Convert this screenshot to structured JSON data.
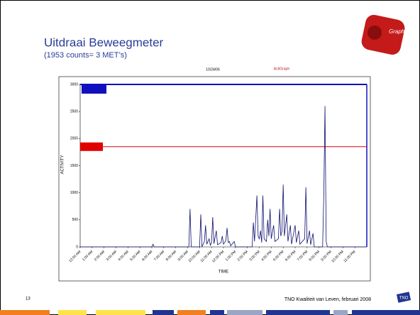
{
  "slide": {
    "title": "Uitdraai Beweegmeter",
    "subtitle": "(1953 counts= 3 MET’s)",
    "page_number": "13",
    "footer": "TNO Kwaliteit van Leven, februari 2008"
  },
  "chart_data": {
    "type": "line",
    "date": "10/24/06",
    "brand": "ActiGraph",
    "x_label": "TIME",
    "y_label": "ACTIVITY",
    "xlim": [
      0,
      24
    ],
    "xticks": [
      {
        "value": 0,
        "label": "12:00 AM"
      },
      {
        "value": 1,
        "label": "1:00 AM"
      },
      {
        "value": 2,
        "label": "2:00 AM"
      },
      {
        "value": 3,
        "label": "3:00 AM"
      },
      {
        "value": 4,
        "label": "4:00 AM"
      },
      {
        "value": 5,
        "label": "5:00 AM"
      },
      {
        "value": 6,
        "label": "6:00 AM"
      },
      {
        "value": 7,
        "label": "7:00 AM"
      },
      {
        "value": 8,
        "label": "8:00 AM"
      },
      {
        "value": 9,
        "label": "9:00 AM"
      },
      {
        "value": 10,
        "label": "10:00 AM"
      },
      {
        "value": 11,
        "label": "11:00 AM"
      },
      {
        "value": 12,
        "label": "12:00 PM"
      },
      {
        "value": 13,
        "label": "1:00 PM"
      },
      {
        "value": 14,
        "label": "2:00 PM"
      },
      {
        "value": 15,
        "label": "3:00 PM"
      },
      {
        "value": 16,
        "label": "4:00 PM"
      },
      {
        "value": 17,
        "label": "5:00 PM"
      },
      {
        "value": 18,
        "label": "6:00 PM"
      },
      {
        "value": 19,
        "label": "7:00 PM"
      },
      {
        "value": 20,
        "label": "8:00 PM"
      },
      {
        "value": 21,
        "label": "9:00 PM"
      },
      {
        "value": 22,
        "label": "10:00 PM"
      },
      {
        "value": 23,
        "label": "11:00 PM"
      }
    ],
    "ylim": [
      0,
      3000
    ],
    "yticks": [
      0,
      500,
      1000,
      1500,
      2000,
      2500,
      3000
    ],
    "threshold": {
      "value": 1850,
      "color": "#e00000"
    },
    "x": [
      0,
      6.0,
      6.1,
      6.2,
      9.1,
      9.2,
      9.3,
      10.0,
      10.1,
      10.2,
      10.4,
      10.5,
      10.6,
      10.8,
      10.9,
      11.0,
      11.1,
      11.2,
      11.4,
      11.5,
      11.8,
      11.9,
      12.0,
      12.2,
      12.3,
      12.4,
      12.5,
      12.6,
      12.9,
      13.0,
      14.4,
      14.5,
      14.6,
      14.8,
      14.9,
      15.0,
      15.1,
      15.2,
      15.3,
      15.4,
      15.6,
      15.7,
      15.8,
      15.9,
      16.0,
      16.2,
      16.3,
      16.6,
      16.7,
      16.8,
      16.9,
      17.0,
      17.1,
      17.3,
      17.4,
      17.6,
      17.7,
      18.0,
      18.1,
      18.3,
      18.4,
      18.8,
      18.9,
      19.0,
      19.2,
      19.3,
      19.5,
      19.6,
      20.3,
      20.4,
      20.5,
      20.6,
      20.7,
      24
    ],
    "series": [
      {
        "color": "#101070",
        "values": [
          0,
          0,
          50,
          0,
          0,
          700,
          0,
          0,
          600,
          0,
          100,
          400,
          50,
          150,
          30,
          80,
          550,
          60,
          300,
          40,
          80,
          200,
          50,
          120,
          350,
          80,
          100,
          20,
          100,
          0,
          0,
          450,
          100,
          950,
          200,
          150,
          300,
          80,
          950,
          150,
          100,
          500,
          200,
          700,
          150,
          400,
          100,
          150,
          700,
          200,
          300,
          1150,
          200,
          600,
          100,
          400,
          50,
          400,
          80,
          300,
          50,
          150,
          1100,
          60,
          300,
          40,
          250,
          0,
          0,
          950,
          2600,
          100,
          0,
          0
        ]
      }
    ]
  }
}
